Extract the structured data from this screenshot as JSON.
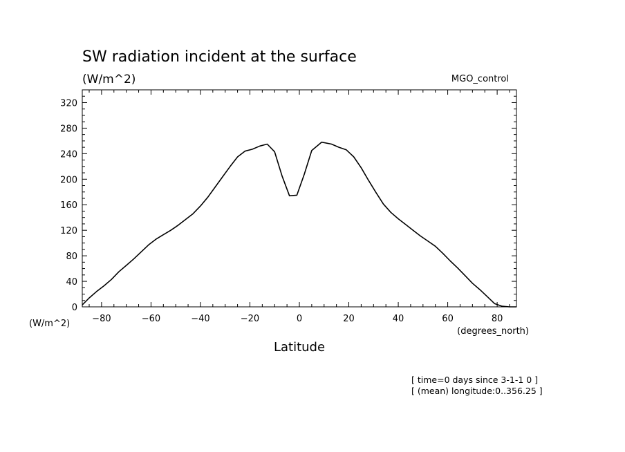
{
  "chart_data": {
    "type": "line",
    "title": "SW radiation incident at the surface",
    "subtitle": "(W/m^2)",
    "run_label": "MGO_control",
    "xlabel": "Latitude",
    "x_units": "(degrees_north)",
    "y_units": "(W/m^2)",
    "xlim": [
      -87.8,
      87.8
    ],
    "ylim": [
      0,
      340
    ],
    "x_ticks": [
      -80,
      -60,
      -40,
      -20,
      0,
      20,
      40,
      60,
      80
    ],
    "x_tick_labels": [
      "−80",
      "−60",
      "−40",
      "−20",
      "0",
      "20",
      "40",
      "60",
      "80"
    ],
    "y_ticks": [
      0,
      40,
      80,
      120,
      160,
      200,
      240,
      280,
      320
    ],
    "y_tick_labels": [
      "0",
      "40",
      "80",
      "120",
      "160",
      "200",
      "240",
      "280",
      "320"
    ],
    "annotations": [
      "[ time=0 days since 3-1-1 0 ]",
      "[ (mean) longitude:0..356.25 ]"
    ],
    "series": [
      {
        "x": [
          -87.8,
          -85,
          -82,
          -79,
          -76,
          -73,
          -70,
          -67,
          -64,
          -61,
          -58,
          -55,
          -52,
          -49,
          -46,
          -43,
          -40,
          -37,
          -34,
          -31,
          -28,
          -25,
          -22,
          -19,
          -16,
          -13,
          -10,
          -7,
          -4,
          -1,
          2,
          5,
          9,
          13,
          16,
          19,
          22,
          25,
          28,
          31,
          34,
          37,
          40,
          43,
          46,
          49,
          52,
          55,
          58,
          61,
          64,
          67,
          70,
          73,
          76,
          79,
          82,
          85,
          87.8
        ],
        "y": [
          3,
          14,
          24,
          33,
          43,
          55,
          65,
          75,
          86,
          97,
          106,
          113,
          120,
          128,
          137,
          146,
          158,
          172,
          188,
          204,
          220,
          235,
          244,
          247,
          252,
          255,
          243,
          205,
          174,
          175,
          208,
          245,
          258,
          255,
          250,
          246,
          235,
          218,
          198,
          179,
          161,
          148,
          138,
          129,
          120,
          111,
          103,
          95,
          84,
          72,
          61,
          49,
          37,
          27,
          16,
          5,
          1,
          0,
          0
        ]
      }
    ]
  }
}
